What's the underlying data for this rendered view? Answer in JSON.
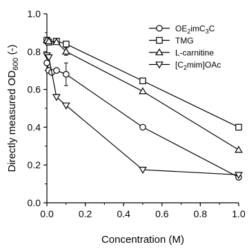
{
  "chart_data": {
    "type": "line",
    "title": "",
    "xlabel": "Concentration (M)",
    "ylabel": {
      "pre": "Directly measured OD",
      "sub": "600",
      "post": " (-)"
    },
    "xlim": [
      0.0,
      1.0
    ],
    "ylim": [
      0.0,
      1.0
    ],
    "x_ticks": [
      0.0,
      0.2,
      0.4,
      0.6,
      0.8,
      1.0
    ],
    "x_tick_labels": [
      "0.0",
      "0.2",
      "0.4",
      "0.6",
      "0.8",
      "1.0"
    ],
    "y_ticks": [
      0.0,
      0.2,
      0.4,
      0.6,
      0.8,
      1.0
    ],
    "y_tick_labels": [
      "0.0",
      "0.2",
      "0.4",
      "0.6",
      "0.8",
      "1.0"
    ],
    "grid": false,
    "legend_position": "top-right",
    "series": [
      {
        "name": "OE2imC3C",
        "name_parts": [
          {
            "t": "OE"
          },
          {
            "t": "2",
            "sub": true
          },
          {
            "t": "imC"
          },
          {
            "t": "3",
            "sub": true
          },
          {
            "t": "C"
          }
        ],
        "marker": "circle",
        "x": [
          0.0,
          0.01,
          0.025,
          0.05,
          0.1,
          0.5,
          1.0
        ],
        "y": [
          0.74,
          0.7,
          0.69,
          0.7,
          0.68,
          0.4,
          0.135
        ],
        "err": [
          0,
          0,
          0,
          0,
          0.06,
          0,
          0
        ]
      },
      {
        "name": "TMG",
        "name_parts": [
          {
            "t": "TMG"
          }
        ],
        "marker": "square",
        "x": [
          0.0,
          0.01,
          0.05,
          0.1,
          0.5,
          1.0
        ],
        "y": [
          0.86,
          0.85,
          0.855,
          0.84,
          0.645,
          0.4
        ],
        "err": [
          0,
          0,
          0,
          0,
          0,
          0
        ]
      },
      {
        "name": "L-carnitine",
        "name_parts": [
          {
            "t": "L-carnitine"
          }
        ],
        "marker": "triangle-up",
        "x": [
          0.0,
          0.01,
          0.05,
          0.1,
          0.5,
          1.0
        ],
        "y": [
          0.86,
          0.855,
          0.85,
          0.8,
          0.59,
          0.28
        ],
        "err": [
          0,
          0,
          0,
          0.02,
          0,
          0
        ]
      },
      {
        "name": "[C2mim]OAc",
        "name_parts": [
          {
            "t": "[C"
          },
          {
            "t": "2",
            "sub": true
          },
          {
            "t": "mim]OAc"
          }
        ],
        "marker": "triangle-down",
        "x": [
          0.0,
          0.01,
          0.05,
          0.1,
          0.5,
          1.0
        ],
        "y": [
          0.78,
          0.77,
          0.56,
          0.515,
          0.175,
          0.148
        ],
        "err": [
          0,
          0,
          0,
          0,
          0,
          0
        ]
      }
    ]
  }
}
